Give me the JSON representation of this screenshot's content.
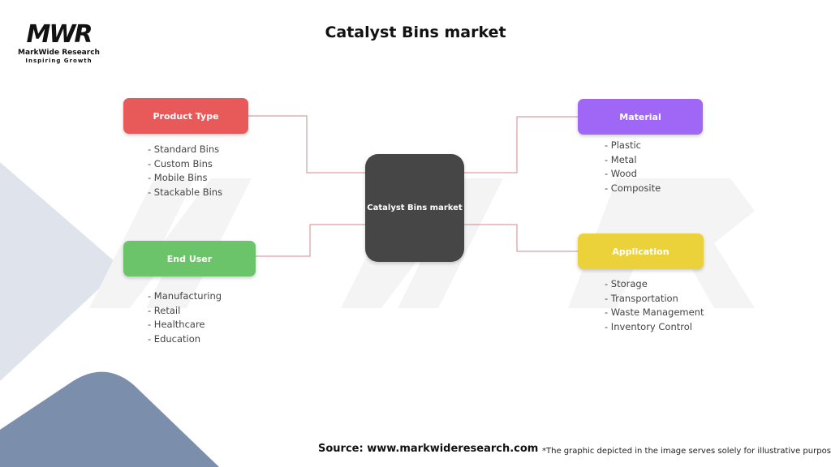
{
  "title": "Catalyst Bins market",
  "logo": {
    "mark": "MWR",
    "name": "MarkWide Research",
    "tagline": "Inspiring Growth"
  },
  "center": {
    "label": "Catalyst Bins market",
    "color": "#464646"
  },
  "nodes": [
    {
      "label": "Product Type",
      "color": "#e85a5a",
      "items": [
        "- Standard Bins",
        "- Custom Bins",
        "- Mobile Bins",
        "- Stackable Bins"
      ]
    },
    {
      "label": "End User",
      "color": "#6cc46a",
      "items": [
        "- Manufacturing",
        "- Retail",
        "- Healthcare",
        "- Education"
      ]
    },
    {
      "label": "Material",
      "color": "#a066f5",
      "items": [
        "- Plastic",
        "- Metal",
        "- Wood",
        "- Composite"
      ]
    },
    {
      "label": "Application",
      "color": "#ecd23a",
      "items": [
        "- Storage",
        "- Transportation",
        "- Waste Management",
        "- Inventory Control"
      ]
    }
  ],
  "connector_color": "#d08a8a",
  "footer": {
    "source": "Source: www.markwideresearch.com",
    "note": "*The graphic depicted in the image serves solely for illustrative purposes"
  }
}
